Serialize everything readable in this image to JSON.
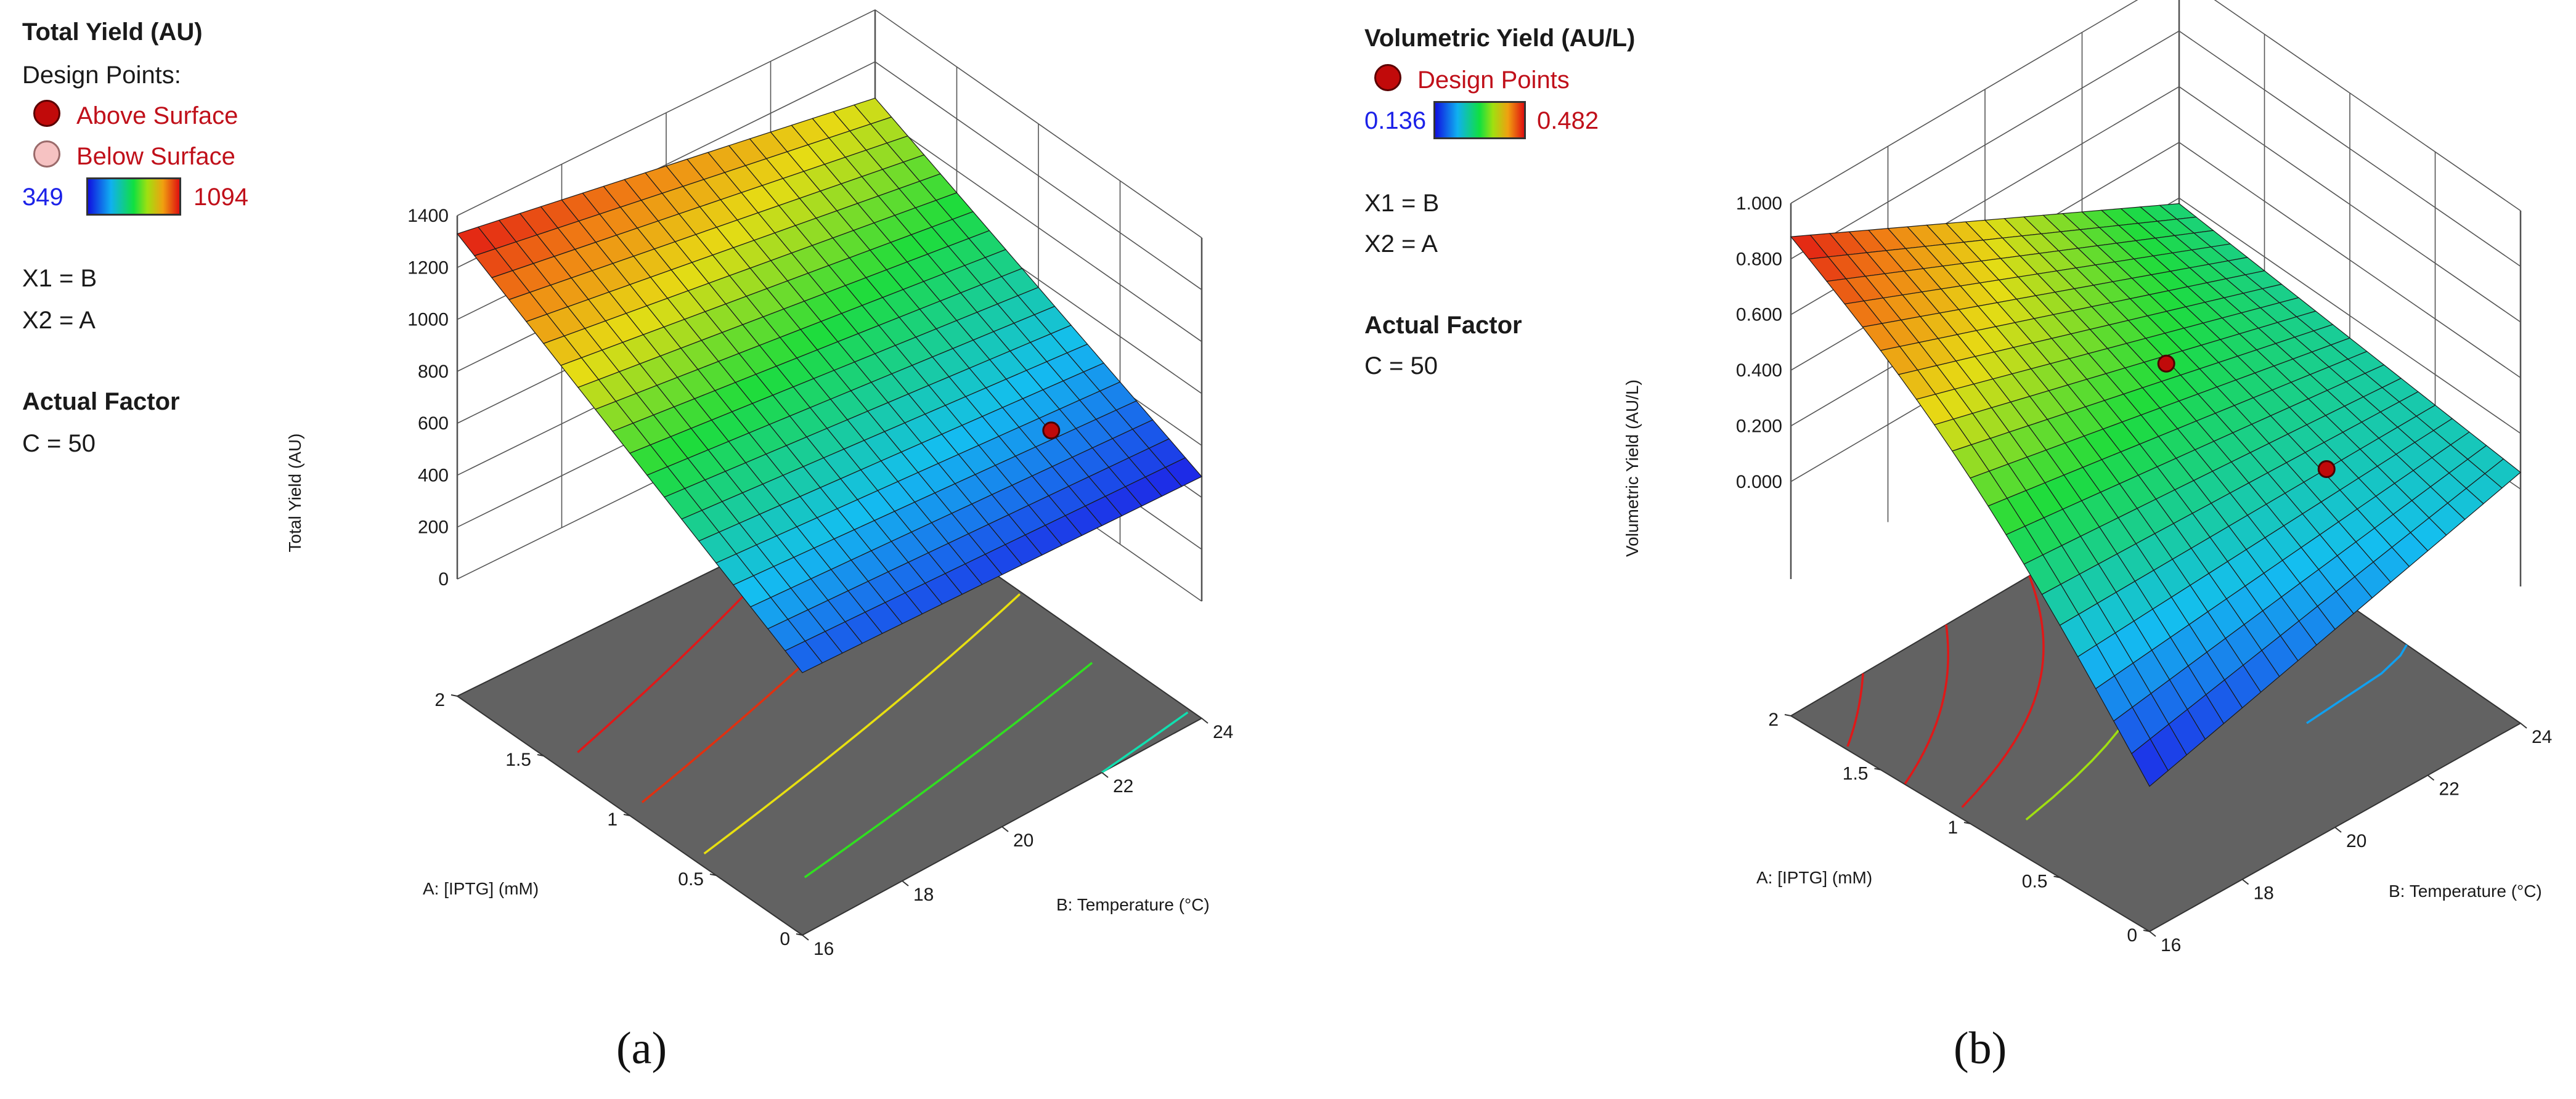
{
  "panels": [
    {
      "id": "a",
      "title": "Total Yield (AU)",
      "legend_heading": "Design Points:",
      "legend_items": [
        "Above Surface",
        "Below Surface"
      ],
      "colorbar_min": "349",
      "colorbar_max": "1094",
      "x1_assign": "X1 = B",
      "x2_assign": "X2 = A",
      "actual_factor_heading": "Actual Factor",
      "actual_factor_value": "C = 50",
      "caption": "(a)"
    },
    {
      "id": "b",
      "title": "Volumetric Yield (AU/L)",
      "legend_items": [
        "Design Points"
      ],
      "colorbar_min": "0.136",
      "colorbar_max": "0.482",
      "x1_assign": "X1 = B",
      "x2_assign": "X2 = A",
      "actual_factor_heading": "Actual Factor",
      "actual_factor_value": "C = 50",
      "caption": "(b)"
    }
  ],
  "chart_data": [
    {
      "type": "surface3d",
      "title": "Total Yield (AU)",
      "xlabel": "B: Temperature (°C)",
      "ylabel": "A: [IPTG] (mM)",
      "zlabel": "Total Yield (AU)",
      "x_ticks": [
        "16",
        "18",
        "20",
        "22",
        "24"
      ],
      "y_ticks": [
        "0",
        "0.5",
        "1",
        "1.5",
        "2"
      ],
      "z_ticks": [
        "0",
        "200",
        "400",
        "600",
        "800",
        "1000",
        "1200",
        "1400"
      ],
      "xlim": [
        16,
        24
      ],
      "ylim": [
        0,
        2
      ],
      "zlim": [
        0,
        1400
      ],
      "surface_corners": {
        "T16_I0": 560,
        "T24_I0": 480,
        "T24_I2": 1060,
        "T16_I2": 1330
      },
      "contour_values": [
        1100,
        950,
        800,
        650,
        500
      ],
      "contour_colors": [
        "#e01818",
        "#e03010",
        "#e8e010",
        "#30e020",
        "#10e0b0"
      ],
      "design_points": [
        {
          "temperature": 22.8,
          "iptg": 0.55,
          "yield": 540,
          "position": "above"
        }
      ]
    },
    {
      "type": "surface3d",
      "title": "Volumetric Yield (AU/L)",
      "xlabel": "B: Temperature (°C)",
      "ylabel": "A: [IPTG] (mM)",
      "zlabel": "Volumetric Yield (AU/L)",
      "x_ticks": [
        "16",
        "18",
        "20",
        "22",
        "24"
      ],
      "y_ticks": [
        "0",
        "0.5",
        "1",
        "1.5",
        "2"
      ],
      "z_ticks": [
        "0.000",
        "0.200",
        "0.400",
        "0.600",
        "0.800",
        "1.000"
      ],
      "xlim": [
        16,
        24
      ],
      "ylim": [
        0,
        2
      ],
      "zlim": [
        -0.35,
        1.0
      ],
      "surface_corners": {
        "T16_I0": -0.32,
        "T24_I0": 0.06,
        "T24_I2": 0.18,
        "T16_I2": 0.88
      },
      "contour_values": [
        0.75,
        0.6,
        0.45,
        0.3,
        0.1
      ],
      "contour_colors": [
        "#e01818",
        "#e01818",
        "#e01818",
        "#a0e010",
        "#10a0f0"
      ],
      "design_points": [
        {
          "temperature": 20.5,
          "iptg": 1.1,
          "vol_yield": 0.33,
          "position": "above"
        },
        {
          "temperature": 21.5,
          "iptg": 0.45,
          "vol_yield": 0.12,
          "position": "above"
        }
      ]
    }
  ]
}
